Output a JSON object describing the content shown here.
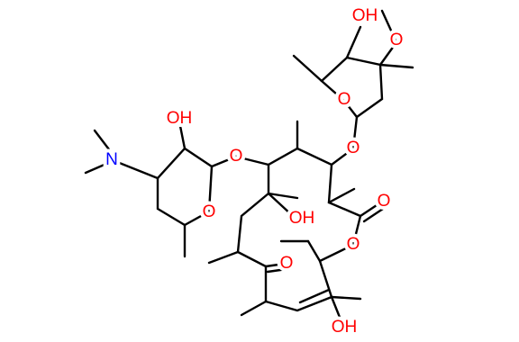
{
  "atoms": [
    {
      "label": "OH"
    },
    {
      "label": "O"
    },
    {
      "label": "O"
    },
    {
      "label": "O"
    },
    {
      "label": "OH"
    },
    {
      "label": "N"
    },
    {
      "label": "O"
    },
    {
      "label": "O"
    },
    {
      "label": "O"
    },
    {
      "label": "OH"
    },
    {
      "label": "O"
    },
    {
      "label": "O"
    },
    {
      "label": "OH"
    }
  ]
}
